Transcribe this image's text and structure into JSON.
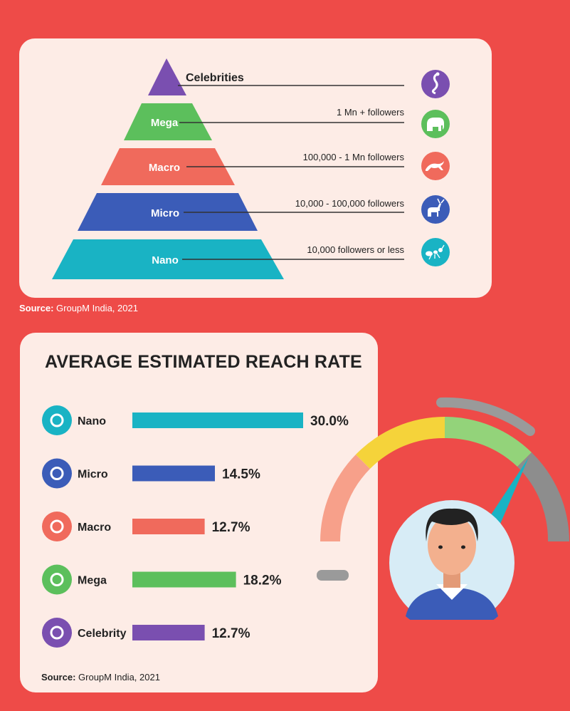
{
  "colors": {
    "background": "#ee4b48",
    "card": "#fdece6",
    "nano": "#19b3c4",
    "micro": "#3b5cb8",
    "macro": "#f06a5c",
    "mega": "#5cbf5c",
    "celebrity": "#7a4fb0",
    "gauge_yellow": "#f5d33a",
    "gauge_green": "#93d37a",
    "gauge_salmon": "#f7a08a",
    "gauge_gray": "#9a9a9a"
  },
  "pyramid": {
    "tiers": [
      {
        "key": "celebrity",
        "label": "Celebrities",
        "desc": "",
        "icon": "peacock-icon"
      },
      {
        "key": "mega",
        "label": "Mega",
        "desc": "1 Mn + followers",
        "icon": "elephant-icon"
      },
      {
        "key": "macro",
        "label": "Macro",
        "desc": "100,000 - 1 Mn followers",
        "icon": "cheetah-icon"
      },
      {
        "key": "micro",
        "label": "Micro",
        "desc": "10,000 - 100,000 followers",
        "icon": "deer-icon"
      },
      {
        "key": "nano",
        "label": "Nano",
        "desc": "10,000 followers or less",
        "icon": "ant-icon"
      }
    ],
    "source_label": "Source:",
    "source_text": "GroupM India, 2021"
  },
  "chart_data": {
    "type": "bar",
    "title": "AVERAGE ESTIMATED REACH RATE",
    "categories": [
      "Nano",
      "Micro",
      "Macro",
      "Mega",
      "Celebrity"
    ],
    "values": [
      30.0,
      14.5,
      12.7,
      18.2,
      12.7
    ],
    "value_labels": [
      "30.0%",
      "14.5%",
      "12.7%",
      "18.2%",
      "12.7%"
    ],
    "unit": "%",
    "orientation": "horizontal",
    "xlim": [
      0,
      30
    ]
  },
  "reach": {
    "source_label": "Source:",
    "source_text": "GroupM India, 2021"
  }
}
